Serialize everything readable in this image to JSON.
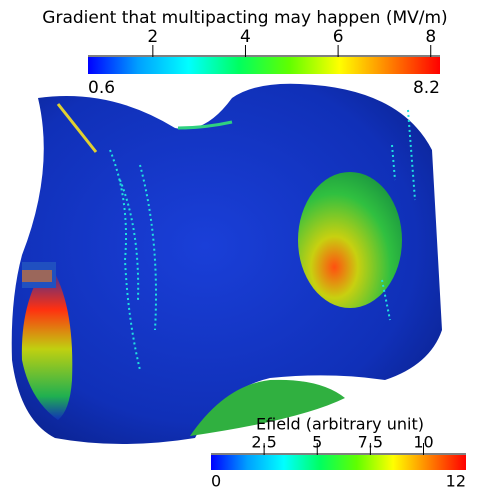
{
  "colormap": [
    "#0000ff",
    "#00a0ff",
    "#00ffff",
    "#00ff60",
    "#60ff00",
    "#ffff00",
    "#ff8000",
    "#ff0000"
  ],
  "colorbars": [
    {
      "title": "Gradient that multipacting may happen (MV/m)",
      "min": 0.6,
      "max": 8.2,
      "ticks": [
        2,
        4,
        6,
        8
      ]
    },
    {
      "title": "Efield (arbitrary unit)",
      "min": 0,
      "max": 12,
      "ticks": [
        2.5,
        5,
        7.5,
        10
      ]
    }
  ]
}
